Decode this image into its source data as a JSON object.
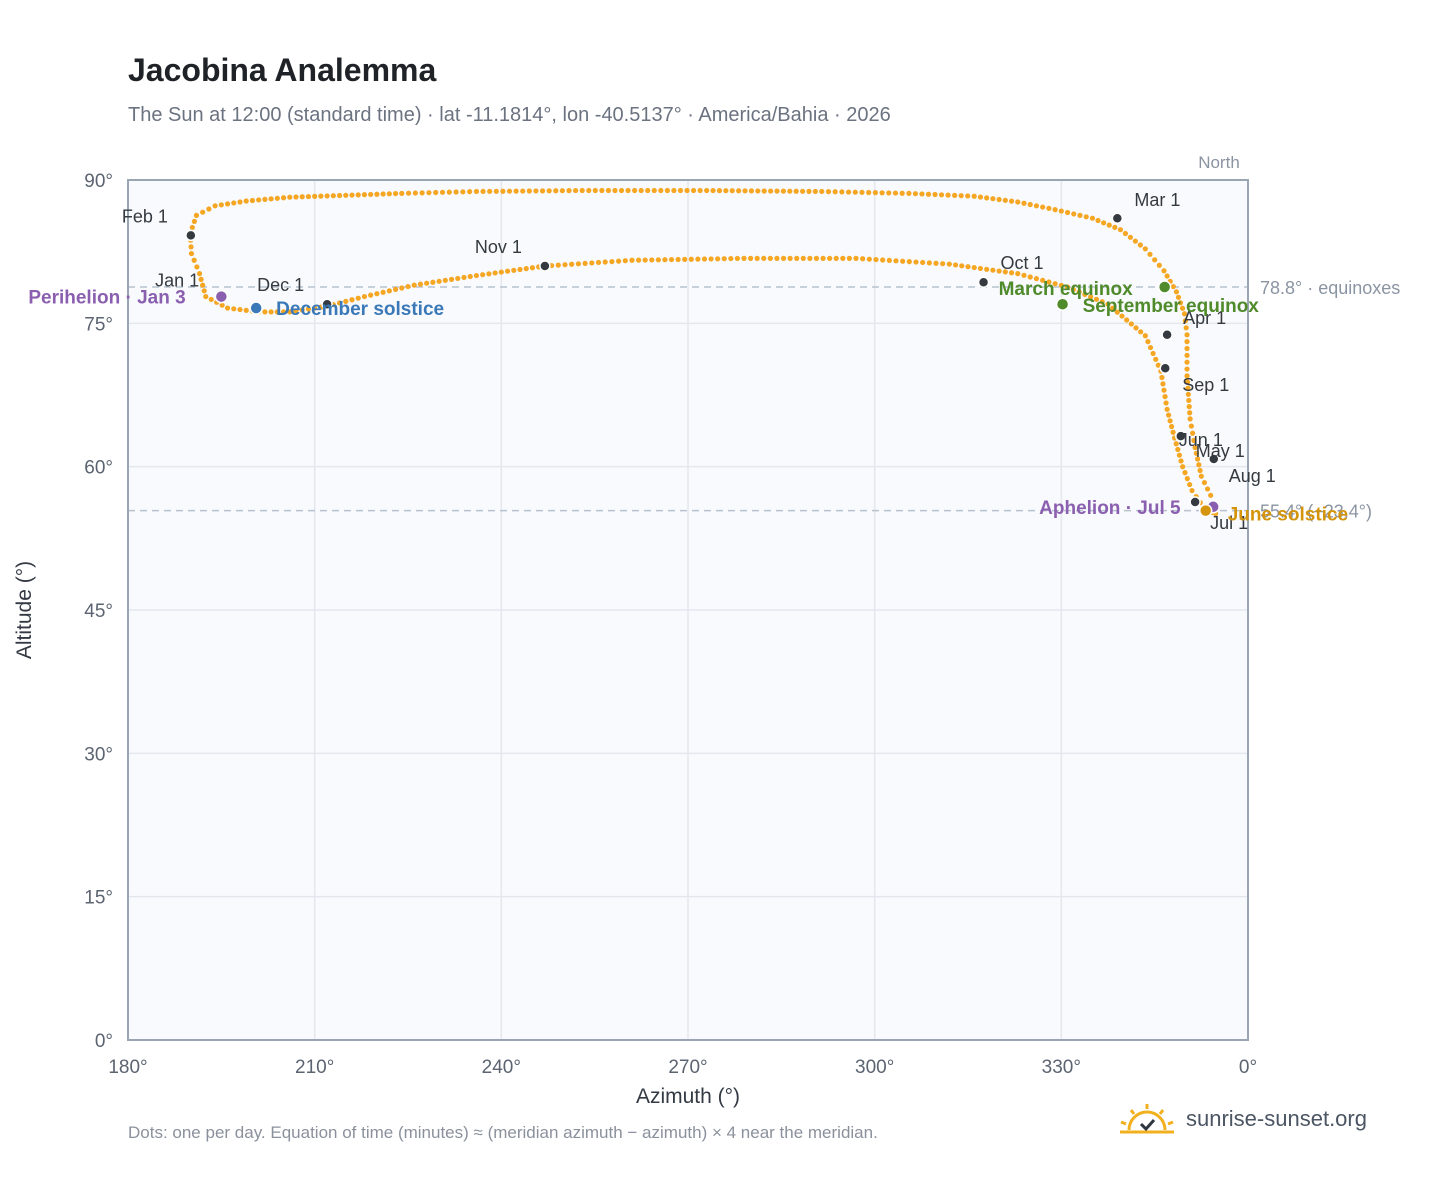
{
  "page": {
    "title": "Jacobina Analemma",
    "subtitle": "The Sun at 12:00 (standard time) · lat -11.1814°, lon -40.5137° · America/Bahia · 2026",
    "footnote": "Dots: one per day. Equation of time (minutes) ≈ (meridian azimuth − azimuth) × 4 near the meridian.",
    "brand": "sunrise-sunset.org",
    "brand_icon": "sun-logo-icon"
  },
  "colors": {
    "path": "#f5a623",
    "month_marker": "#343a40",
    "perihelion": "#8b5fb0",
    "aphelion": "#8b5fb0",
    "december_solstice": "#3a78b8",
    "equinox": "#4f8a2b",
    "june_solstice": "#d4940b",
    "plot_background": "#f8fafd",
    "grid": "#e4e8ee",
    "axis_frame": "#9aa5b3",
    "reference_line": "#b8c2ce"
  },
  "chart_data": {
    "type": "scatter",
    "xlabel": "Azimuth (°)",
    "ylabel": "Altitude (°)",
    "xlim": [
      180,
      360
    ],
    "ylim": [
      0,
      90
    ],
    "x_ticks": [
      "180°",
      "210°",
      "240°",
      "270°",
      "300°",
      "330°",
      "0°"
    ],
    "y_ticks": [
      "0°",
      "15°",
      "30°",
      "45°",
      "60°",
      "75°",
      "90°"
    ],
    "grid": true,
    "north_label": "North",
    "north_azimuth": 360,
    "reference_lines": [
      {
        "altitude": 78.8,
        "label": "78.8° · equinoxes"
      },
      {
        "altitude": 55.4,
        "label": "55.4° (−23.4°)"
      }
    ],
    "series": [
      {
        "description": "daily solar position",
        "x": [
          191.5,
          190.2,
          190.0,
          191.0,
          194.0,
          199.0,
          206.0,
          215.0,
          224.0,
          236.0,
          253.0,
          273.0,
          291.5,
          305.5,
          316.0,
          323.0,
          329.0,
          335.0,
          339.5,
          343.5,
          346.5,
          348.5,
          349.8,
          350.2,
          350.2,
          350.7,
          351.5,
          352.5,
          354.0,
          354.7,
          354.8,
          354.3,
          353.0,
          351.0,
          349.5,
          348.2,
          347.0,
          346.0,
          343.5,
          337.5,
          331.0,
          323.0,
          312.0,
          297.0,
          279.0,
          261.0,
          247.0,
          236.0,
          226.0,
          218.0,
          212.0,
          206.0,
          201.0,
          196.0,
          192.5
        ],
        "y": [
          80.2,
          82.3,
          84.4,
          86.3,
          87.3,
          87.8,
          88.2,
          88.4,
          88.6,
          88.8,
          88.9,
          88.9,
          88.8,
          88.6,
          88.3,
          87.7,
          86.9,
          86.0,
          84.8,
          82.8,
          80.5,
          78.3,
          76.0,
          73.8,
          69.5,
          65.0,
          62.0,
          59.0,
          57.0,
          55.6,
          55.1,
          55.2,
          55.6,
          57.5,
          60.0,
          63.0,
          66.0,
          70.0,
          73.7,
          77.0,
          78.8,
          80.2,
          81.2,
          81.8,
          81.8,
          81.6,
          81.0,
          80.0,
          79.0,
          77.8,
          76.8,
          76.2,
          76.2,
          76.6,
          77.8
        ]
      }
    ],
    "month_markers": [
      {
        "label": "Jan 1",
        "x": 194.8,
        "y": 77.8
      },
      {
        "label": "Feb 1",
        "x": 190.1,
        "y": 84.2
      },
      {
        "label": "Mar 1",
        "x": 339.0,
        "y": 86.0
      },
      {
        "label": "Apr 1",
        "x": 347.0,
        "y": 73.8
      },
      {
        "label": "May 1",
        "x": 354.5,
        "y": 60.8
      },
      {
        "label": "Jun 1",
        "x": 349.2,
        "y": 63.2
      },
      {
        "label": "Jul 1",
        "x": 351.5,
        "y": 56.3
      },
      {
        "label": "Aug 1",
        "x": 354.5,
        "y": 56.0
      },
      {
        "label": "Sep 1",
        "x": 346.7,
        "y": 70.3
      },
      {
        "label": "Oct 1",
        "x": 317.5,
        "y": 79.3
      },
      {
        "label": "Nov 1",
        "x": 247.0,
        "y": 81.0
      },
      {
        "label": "Dec 1",
        "x": 212.0,
        "y": 77.0
      }
    ],
    "events": [
      {
        "label": "Perihelion · Jan 3",
        "x": 195.0,
        "y": 77.8
      },
      {
        "label": "December solstice",
        "x": 200.6,
        "y": 76.6
      },
      {
        "label": "March equinox",
        "x": 346.6,
        "y": 78.8
      },
      {
        "label": "September equinox",
        "x": 330.2,
        "y": 77.0
      },
      {
        "label": "Aphelion · Jul 5",
        "x": 354.4,
        "y": 55.8
      },
      {
        "label": "June solstice",
        "x": 353.2,
        "y": 55.4
      }
    ]
  }
}
